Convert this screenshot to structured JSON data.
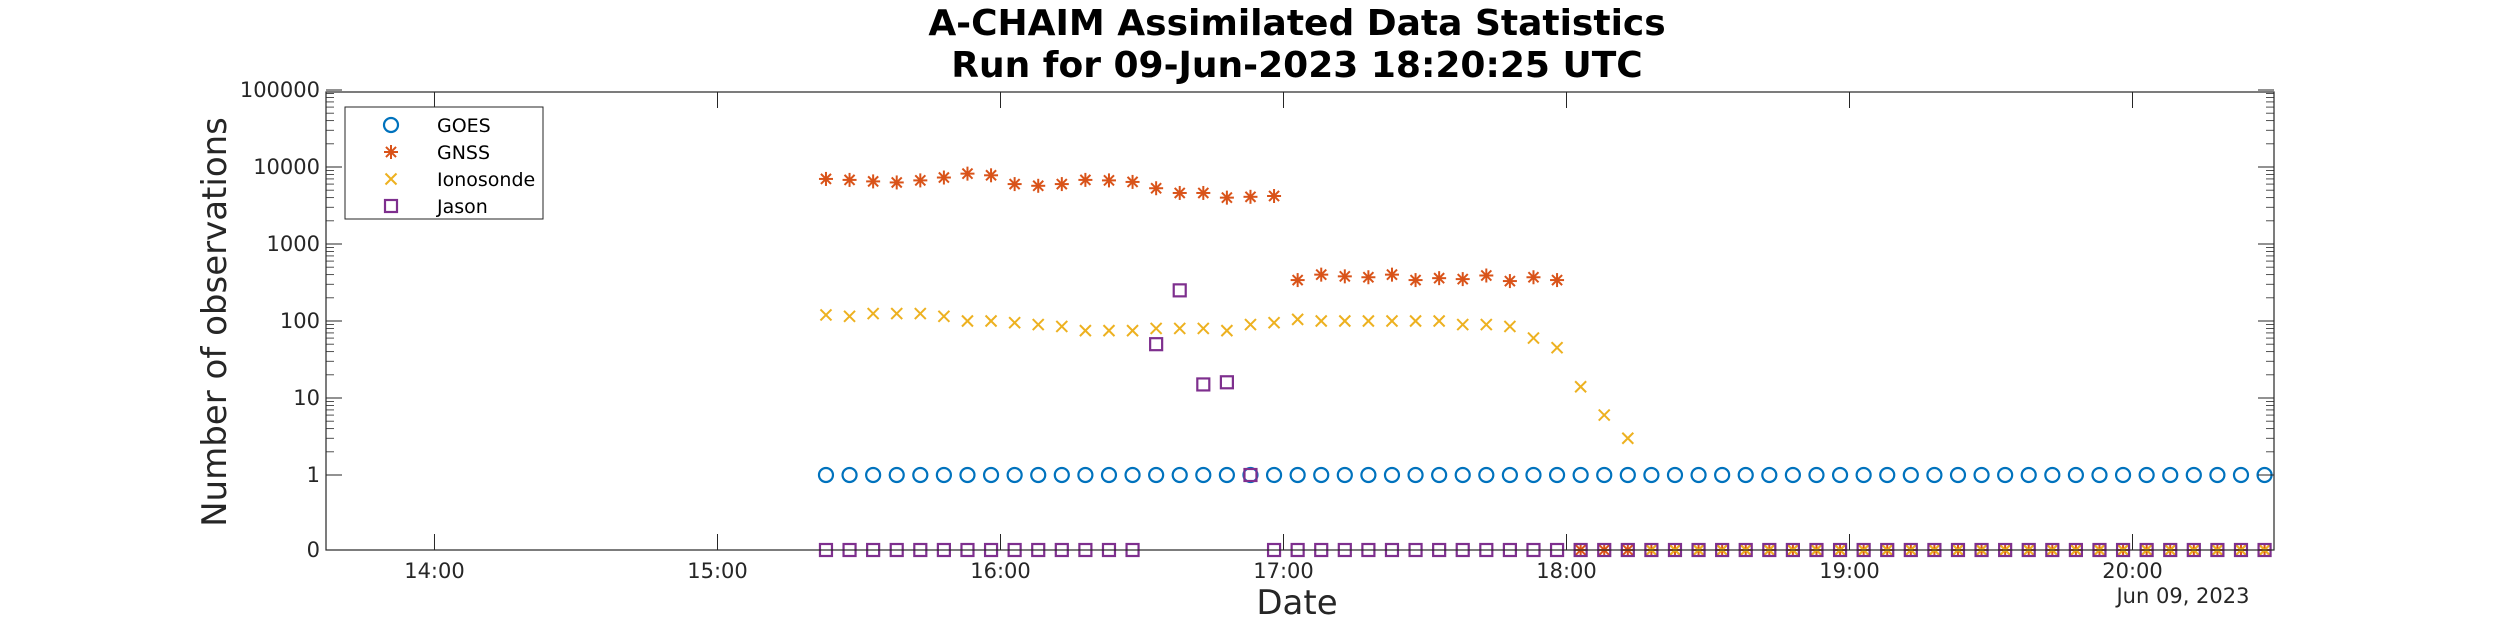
{
  "chart_data": {
    "type": "scatter",
    "title": [
      "A-CHAIM Assimilated Data Statistics",
      "Run for 09-Jun-2023 18:20:25 UTC"
    ],
    "xlabel": "Date",
    "ylabel": "Number of observations",
    "x_unit": "hours UTC, 09-Jun-2023",
    "date_note": "Jun 09, 2023",
    "xlim": [
      "13:37",
      "20:30"
    ],
    "x_ticks": [
      "14:00",
      "15:00",
      "16:00",
      "17:00",
      "18:00",
      "19:00",
      "20:00"
    ],
    "y_scale": "log with zero",
    "y_ticks": [
      "0",
      "1",
      "10",
      "100",
      "1000",
      "10000",
      "100000"
    ],
    "grid": false,
    "legend": {
      "position": "top-left"
    },
    "series": [
      {
        "name": "GOES",
        "marker": "circle",
        "color": "#0072BD",
        "x": [
          "15:23",
          "15:28",
          "15:33",
          "15:38",
          "15:43",
          "15:48",
          "15:53",
          "15:58",
          "16:03",
          "16:08",
          "16:13",
          "16:18",
          "16:23",
          "16:28",
          "16:33",
          "16:38",
          "16:43",
          "16:48",
          "16:53",
          "16:58",
          "17:03",
          "17:08",
          "17:13",
          "17:18",
          "17:23",
          "17:28",
          "17:33",
          "17:38",
          "17:43",
          "17:48",
          "17:53",
          "17:58",
          "18:03",
          "18:08",
          "18:13",
          "18:18",
          "18:23",
          "18:28",
          "18:33",
          "18:38",
          "18:43",
          "18:48",
          "18:53",
          "18:58",
          "19:03",
          "19:08",
          "19:13",
          "19:18",
          "19:23",
          "19:28",
          "19:33",
          "19:38",
          "19:43",
          "19:48",
          "19:53",
          "19:58",
          "20:03",
          "20:08",
          "20:13",
          "20:18",
          "20:23",
          "20:28"
        ],
        "y": [
          1,
          1,
          1,
          1,
          1,
          1,
          1,
          1,
          1,
          1,
          1,
          1,
          1,
          1,
          1,
          1,
          1,
          1,
          1,
          1,
          1,
          1,
          1,
          1,
          1,
          1,
          1,
          1,
          1,
          1,
          1,
          1,
          1,
          1,
          1,
          1,
          1,
          1,
          1,
          1,
          1,
          1,
          1,
          1,
          1,
          1,
          1,
          1,
          1,
          1,
          1,
          1,
          1,
          1,
          1,
          1,
          1,
          1,
          1,
          1,
          1,
          1
        ]
      },
      {
        "name": "GNSS",
        "marker": "asterisk",
        "color": "#D95319",
        "x": [
          "15:23",
          "15:28",
          "15:33",
          "15:38",
          "15:43",
          "15:48",
          "15:53",
          "15:58",
          "16:03",
          "16:08",
          "16:13",
          "16:18",
          "16:23",
          "16:28",
          "16:33",
          "16:38",
          "16:43",
          "16:48",
          "16:53",
          "16:58",
          "17:03",
          "17:08",
          "17:13",
          "17:18",
          "17:23",
          "17:28",
          "17:33",
          "17:38",
          "17:43",
          "17:48",
          "17:53",
          "17:58",
          "18:03",
          "18:08",
          "18:13",
          "18:18",
          "18:23",
          "18:28",
          "18:33",
          "18:38",
          "18:43",
          "18:48",
          "18:53",
          "18:58",
          "19:03",
          "19:08",
          "19:13",
          "19:18",
          "19:23",
          "19:28",
          "19:33",
          "19:38",
          "19:43",
          "19:48",
          "19:53",
          "19:58",
          "20:03",
          "20:08",
          "20:13",
          "20:18",
          "20:23",
          "20:28"
        ],
        "y": [
          7000,
          6800,
          6500,
          6300,
          6700,
          7300,
          8200,
          7800,
          6000,
          5700,
          6000,
          6800,
          6700,
          6400,
          5300,
          4600,
          4600,
          4000,
          4100,
          4200,
          340,
          400,
          380,
          370,
          400,
          340,
          360,
          350,
          390,
          330,
          370,
          340,
          0,
          0,
          0,
          0,
          0,
          0,
          0,
          0,
          0,
          0,
          0,
          0,
          0,
          0,
          0,
          0,
          0,
          0,
          0,
          0,
          0,
          0,
          0,
          0,
          0,
          0,
          0,
          0,
          0,
          0
        ]
      },
      {
        "name": "Ionosonde",
        "marker": "x",
        "color": "#EDB120",
        "x": [
          "15:23",
          "15:28",
          "15:33",
          "15:38",
          "15:43",
          "15:48",
          "15:53",
          "15:58",
          "16:03",
          "16:08",
          "16:13",
          "16:18",
          "16:23",
          "16:28",
          "16:33",
          "16:38",
          "16:43",
          "16:48",
          "16:53",
          "16:58",
          "17:03",
          "17:08",
          "17:13",
          "17:18",
          "17:23",
          "17:28",
          "17:33",
          "17:38",
          "17:43",
          "17:48",
          "17:53",
          "17:58",
          "18:03",
          "18:08",
          "18:13",
          "18:18",
          "18:23",
          "18:28",
          "18:33",
          "18:38",
          "18:43",
          "18:48",
          "18:53",
          "18:58",
          "19:03",
          "19:08",
          "19:13",
          "19:18",
          "19:23",
          "19:28",
          "19:33",
          "19:38",
          "19:43",
          "19:48",
          "19:53",
          "19:58",
          "20:03",
          "20:08",
          "20:13",
          "20:18",
          "20:23",
          "20:28"
        ],
        "y": [
          120,
          115,
          125,
          125,
          125,
          115,
          100,
          100,
          95,
          90,
          85,
          75,
          75,
          75,
          80,
          80,
          80,
          75,
          90,
          95,
          105,
          100,
          100,
          100,
          100,
          100,
          100,
          90,
          90,
          85,
          60,
          45,
          14,
          6,
          3,
          0,
          0,
          0,
          0,
          0,
          0,
          0,
          0,
          0,
          0,
          0,
          0,
          0,
          0,
          0,
          0,
          0,
          0,
          0,
          0,
          0,
          0,
          0,
          0,
          0,
          0,
          0
        ]
      },
      {
        "name": "Jason",
        "marker": "square",
        "color": "#7E2F8E",
        "x": [
          "15:23",
          "15:28",
          "15:33",
          "15:38",
          "15:43",
          "15:48",
          "15:53",
          "15:58",
          "16:03",
          "16:08",
          "16:13",
          "16:18",
          "16:23",
          "16:28",
          "16:33",
          "16:38",
          "16:43",
          "16:48",
          "16:53",
          "16:58",
          "17:03",
          "17:08",
          "17:13",
          "17:18",
          "17:23",
          "17:28",
          "17:33",
          "17:38",
          "17:43",
          "17:48",
          "17:53",
          "17:58",
          "18:03",
          "18:08",
          "18:13",
          "18:18",
          "18:23",
          "18:28",
          "18:33",
          "18:38",
          "18:43",
          "18:48",
          "18:53",
          "18:58",
          "19:03",
          "19:08",
          "19:13",
          "19:18",
          "19:23",
          "19:28",
          "19:33",
          "19:38",
          "19:43",
          "19:48",
          "19:53",
          "19:58",
          "20:03",
          "20:08",
          "20:13",
          "20:18",
          "20:23",
          "20:28"
        ],
        "y": [
          0,
          0,
          0,
          0,
          0,
          0,
          0,
          0,
          0,
          0,
          0,
          0,
          0,
          0,
          50,
          250,
          15,
          16,
          1,
          0,
          0,
          0,
          0,
          0,
          0,
          0,
          0,
          0,
          0,
          0,
          0,
          0,
          0,
          0,
          0,
          0,
          0,
          0,
          0,
          0,
          0,
          0,
          0,
          0,
          0,
          0,
          0,
          0,
          0,
          0,
          0,
          0,
          0,
          0,
          0,
          0,
          0,
          0,
          0,
          0,
          0,
          0
        ]
      }
    ]
  }
}
